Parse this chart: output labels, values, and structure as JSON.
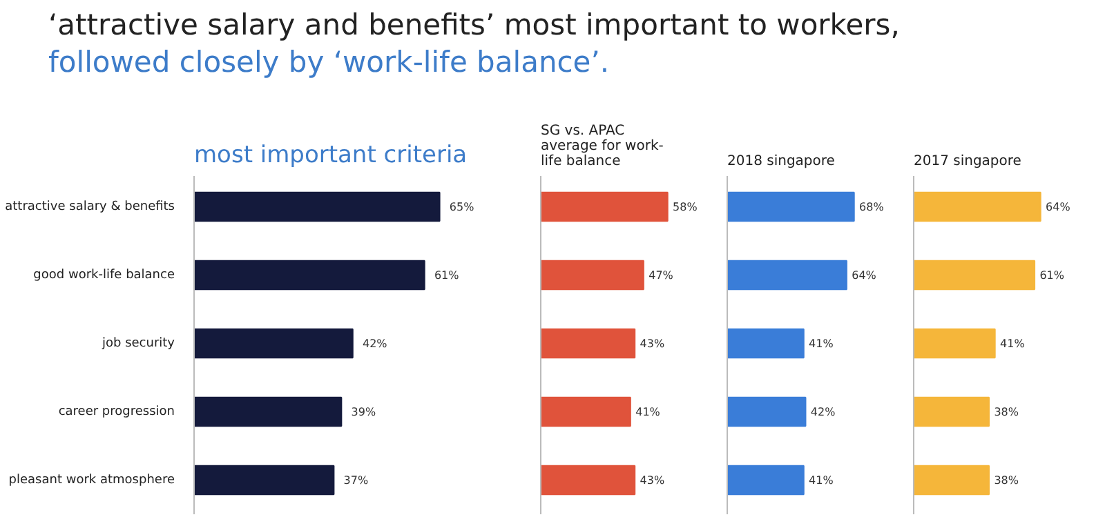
{
  "chart_data": [
    {
      "type": "other",
      "title": "‘attractive salary and benefits’ most important to workers,",
      "subtitle": "followed closely by ‘work-life balance’."
    },
    {
      "type": "bar",
      "orientation": "horizontal",
      "title": "most important criteria",
      "categories": [
        "attractive salary & benefits",
        "good work-life balance",
        "job security",
        "career progression",
        "pleasant work atmosphere"
      ],
      "values": [
        65,
        61,
        42,
        39,
        37
      ],
      "color": "#141a3c",
      "value_labels": [
        "65%",
        "61%",
        "42%",
        "39%",
        "37%"
      ],
      "tick_labels": "y"
    },
    {
      "type": "bar",
      "orientation": "horizontal",
      "title": "SG vs. APAC average for work-life balance",
      "categories": [
        null,
        null,
        null,
        null,
        null
      ],
      "values": [
        58,
        47,
        43,
        41,
        43
      ],
      "color": "#e0533b",
      "value_labels": [
        "58%",
        "47%",
        "43%",
        "41%",
        "43%"
      ],
      "tick_labels": false
    },
    {
      "type": "bar",
      "orientation": "horizontal",
      "title": "2018 singapore",
      "categories": [
        null,
        null,
        null,
        null,
        null
      ],
      "values": [
        68,
        64,
        41,
        42,
        41
      ],
      "color": "#3a7dd8",
      "value_labels": [
        "68%",
        "64%",
        "41%",
        "42%",
        "41%"
      ],
      "tick_labels": false
    },
    {
      "type": "bar",
      "orientation": "horizontal",
      "title": "2017 singapore",
      "categories": [
        null,
        null,
        null,
        null,
        null
      ],
      "values": [
        64,
        61,
        41,
        38,
        38
      ],
      "color": "#f5b63a",
      "value_labels": [
        "64%",
        "61%",
        "41%",
        "38%",
        "38%"
      ],
      "tick_labels": false
    }
  ]
}
